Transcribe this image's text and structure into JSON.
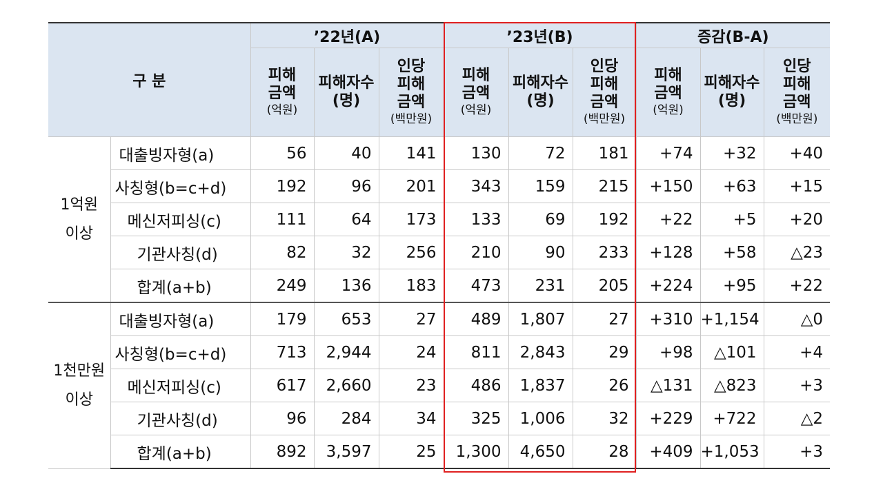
{
  "table": {
    "header": {
      "group_label": "구 분",
      "periods": [
        "’22년(A)",
        "’23년(B)",
        "증감(B-A)"
      ],
      "columns": [
        [
          "피해",
          "금액",
          "(억원)"
        ],
        [
          "피해자수",
          "(명)"
        ],
        [
          "인당",
          "피해",
          "금액",
          "(백만원)"
        ]
      ]
    },
    "sections": [
      {
        "label": [
          "1억원",
          "이상"
        ],
        "rows": [
          {
            "label": "대출빙자형(a)",
            "values": [
              "56",
              "40",
              "141",
              "130",
              "72",
              "181",
              "+74",
              "+32",
              "+40"
            ]
          },
          {
            "label": "사칭형(b=c+d)",
            "values": [
              "192",
              "96",
              "201",
              "343",
              "159",
              "215",
              "+150",
              "+63",
              "+15"
            ]
          },
          {
            "label": "메신저피싱(c)",
            "values": [
              "111",
              "64",
              "173",
              "133",
              "69",
              "192",
              "+22",
              "+5",
              "+20"
            ]
          },
          {
            "label": "기관사칭(d)",
            "values": [
              "82",
              "32",
              "256",
              "210",
              "90",
              "233",
              "+128",
              "+58",
              "△23"
            ]
          },
          {
            "label": "합계(a+b)",
            "values": [
              "249",
              "136",
              "183",
              "473",
              "231",
              "205",
              "+224",
              "+95",
              "+22"
            ]
          }
        ]
      },
      {
        "label": [
          "1천만원",
          "이상"
        ],
        "rows": [
          {
            "label": "대출빙자형(a)",
            "values": [
              "179",
              "653",
              "27",
              "489",
              "1,807",
              "27",
              "+310",
              "+1,154",
              "△0"
            ]
          },
          {
            "label": "사칭형(b=c+d)",
            "values": [
              "713",
              "2,944",
              "24",
              "811",
              "2,843",
              "29",
              "+98",
              "△101",
              "+4"
            ]
          },
          {
            "label": "메신저피싱(c)",
            "values": [
              "617",
              "2,660",
              "23",
              "486",
              "1,837",
              "26",
              "△131",
              "△823",
              "+3"
            ]
          },
          {
            "label": "기관사칭(d)",
            "values": [
              "96",
              "284",
              "34",
              "325",
              "1,006",
              "32",
              "+229",
              "+722",
              "△2"
            ]
          },
          {
            "label": "합계(a+b)",
            "values": [
              "892",
              "3,597",
              "25",
              "1,300",
              "4,650",
              "28",
              "+409",
              "+1,053",
              "+3"
            ]
          }
        ]
      }
    ]
  }
}
